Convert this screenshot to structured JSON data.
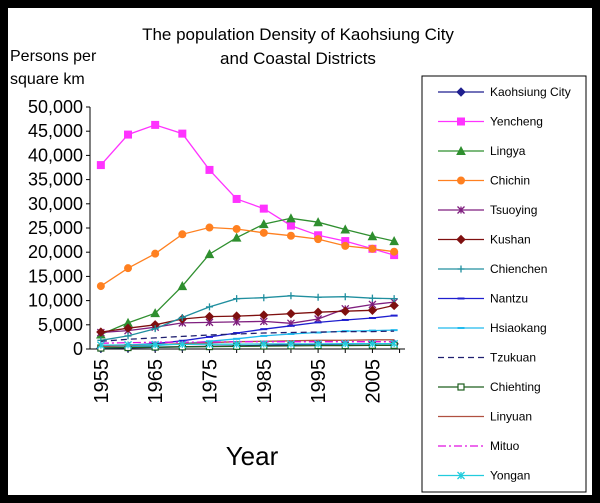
{
  "chart_data": {
    "type": "line",
    "title_lines": [
      "The population Density of Kaohsiung City",
      "and Coastal Districts"
    ],
    "ylabel_lines": [
      "Persons per",
      "square km"
    ],
    "xlabel": "Year",
    "ylim": [
      0,
      50000
    ],
    "yticks": [
      "0",
      "5,000",
      "10,000",
      "15,000",
      "20,000",
      "25,000",
      "30,000",
      "35,000",
      "40,000",
      "45,000",
      "50,000"
    ],
    "xticks": [
      "1955",
      "1965",
      "1975",
      "1985",
      "1995",
      "2005"
    ],
    "x": [
      1955,
      1960,
      1965,
      1970,
      1975,
      1980,
      1985,
      1990,
      1995,
      2000,
      2005,
      2009
    ],
    "grid": false,
    "legend_position": "right",
    "series": [
      {
        "name": "Kaohsiung City",
        "color": "#1f1f8f",
        "marker": "diamond",
        "dash": "none",
        "values": [
          150,
          250,
          350,
          450,
          550,
          650,
          750,
          850,
          950,
          1000,
          1050,
          1050
        ]
      },
      {
        "name": "Yencheng",
        "color": "#ff33ff",
        "marker": "square",
        "dash": "none",
        "values": [
          38000,
          44300,
          46300,
          44500,
          37000,
          31000,
          29000,
          25500,
          23500,
          22300,
          20700,
          19400
        ]
      },
      {
        "name": "Lingya",
        "color": "#2f8f2f",
        "marker": "triangle",
        "dash": "none",
        "values": [
          3000,
          5400,
          7400,
          13000,
          19600,
          23000,
          25800,
          27000,
          26200,
          24700,
          23300,
          22300
        ]
      },
      {
        "name": "Chichin",
        "color": "#ff8020",
        "marker": "circle",
        "dash": "none",
        "values": [
          13000,
          16700,
          19700,
          23700,
          25100,
          24800,
          24000,
          23400,
          22700,
          21300,
          20700,
          20100
        ]
      },
      {
        "name": "Tsuoying",
        "color": "#7f1f7f",
        "marker": "star",
        "dash": "none",
        "values": [
          3400,
          3800,
          4500,
          5400,
          5500,
          5600,
          5700,
          5300,
          6200,
          8300,
          9200,
          9700
        ]
      },
      {
        "name": "Kushan",
        "color": "#7f1010",
        "marker": "diamond",
        "dash": "none",
        "values": [
          3500,
          4300,
          5000,
          6200,
          6700,
          6800,
          7000,
          7300,
          7600,
          7800,
          8000,
          9000
        ]
      },
      {
        "name": "Chienchen",
        "color": "#208f9f",
        "marker": "plus",
        "dash": "none",
        "values": [
          1800,
          2700,
          4200,
          6500,
          8700,
          10400,
          10600,
          11000,
          10700,
          10800,
          10500,
          10400
        ]
      },
      {
        "name": "Nantzu",
        "color": "#1f1fcf",
        "marker": "dash",
        "dash": "none",
        "values": [
          500,
          800,
          1100,
          1700,
          2500,
          3300,
          4100,
          4800,
          5500,
          6000,
          6400,
          6900
        ]
      },
      {
        "name": "Hsiaokang",
        "color": "#22bbee",
        "marker": "dash",
        "dash": "none",
        "values": [
          300,
          500,
          700,
          1100,
          1600,
          2100,
          2700,
          3100,
          3400,
          3700,
          3800,
          3900
        ]
      },
      {
        "name": "Tzukuan",
        "color": "#1f1f6f",
        "marker": "none",
        "dash": "6,4",
        "values": [
          1600,
          2000,
          2300,
          2600,
          2900,
          3100,
          3300,
          3400,
          3500,
          3600,
          3600,
          3700
        ]
      },
      {
        "name": "Chiehting",
        "color": "#1f5f1f",
        "marker": "open-square",
        "dash": "none",
        "values": [
          200,
          300,
          400,
          450,
          500,
          550,
          600,
          650,
          700,
          700,
          750,
          750
        ]
      },
      {
        "name": "Linyuan",
        "color": "#b05040",
        "marker": "none",
        "dash": "none",
        "values": [
          500,
          700,
          900,
          1100,
          1300,
          1500,
          1600,
          1700,
          1800,
          1800,
          1900,
          1900
        ]
      },
      {
        "name": "Mituo",
        "color": "#e010e0",
        "marker": "none",
        "dash": "8,3,2,3",
        "values": [
          1200,
          1300,
          1400,
          1400,
          1450,
          1500,
          1500,
          1500,
          1500,
          1500,
          1500,
          1500
        ]
      },
      {
        "name": "Yongan",
        "color": "#22ccdd",
        "marker": "star",
        "dash": "none",
        "values": [
          800,
          850,
          900,
          950,
          1000,
          1000,
          1050,
          1050,
          1050,
          1100,
          1100,
          1100
        ]
      }
    ]
  }
}
